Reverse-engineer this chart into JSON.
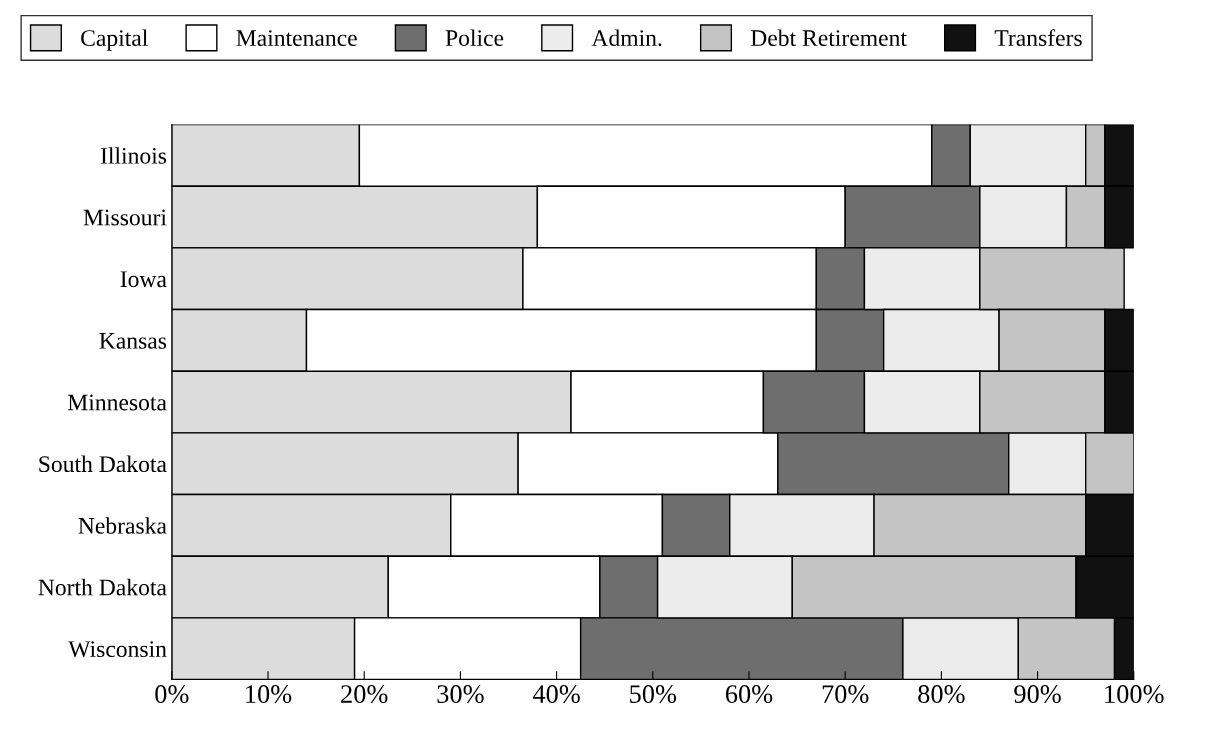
{
  "chart_data": {
    "type": "bar",
    "orientation": "horizontal",
    "stacked": true,
    "categories": [
      "Illinois",
      "Missouri",
      "Iowa",
      "Kansas",
      "Minnesota",
      "South Dakota",
      "Nebraska",
      "North Dakota",
      "Wisconsin"
    ],
    "series": [
      {
        "name": "Capital",
        "color": "#dcdcdc",
        "values": [
          19.5,
          38,
          36.5,
          14,
          41.5,
          36,
          29,
          22.5,
          19
        ]
      },
      {
        "name": "Maintenance",
        "color": "#ffffff",
        "values": [
          59.5,
          32,
          30.5,
          53,
          20,
          27,
          22,
          22,
          23.5
        ]
      },
      {
        "name": "Police",
        "color": "#6e6e6e",
        "values": [
          4,
          14,
          5,
          7,
          10.5,
          24,
          7,
          6,
          33.5
        ]
      },
      {
        "name": "Admin.",
        "color": "#ececec",
        "values": [
          12,
          9,
          12,
          12,
          12,
          8,
          15,
          14,
          12
        ]
      },
      {
        "name": "Debt Retirement",
        "color": "#c4c4c4",
        "values": [
          2,
          4,
          15,
          11,
          13,
          5,
          22,
          29.5,
          10
        ]
      },
      {
        "name": "Transfers",
        "color": "#111111",
        "values": [
          3,
          3,
          null,
          3,
          3,
          null,
          5,
          6,
          2
        ]
      }
    ],
    "xlim": [
      0,
      100
    ],
    "xticks": [
      {
        "value": 0,
        "label": "0%"
      },
      {
        "value": 10,
        "label": "10%"
      },
      {
        "value": 20,
        "label": "20%"
      },
      {
        "value": 30,
        "label": "30%"
      },
      {
        "value": 40,
        "label": "40%"
      },
      {
        "value": 50,
        "label": "50%"
      },
      {
        "value": 60,
        "label": "60%"
      },
      {
        "value": 70,
        "label": "70%"
      },
      {
        "value": 80,
        "label": "80%"
      },
      {
        "value": 90,
        "label": "90%"
      },
      {
        "value": 100,
        "label": "100%"
      }
    ],
    "legend": "top",
    "grid": false
  }
}
